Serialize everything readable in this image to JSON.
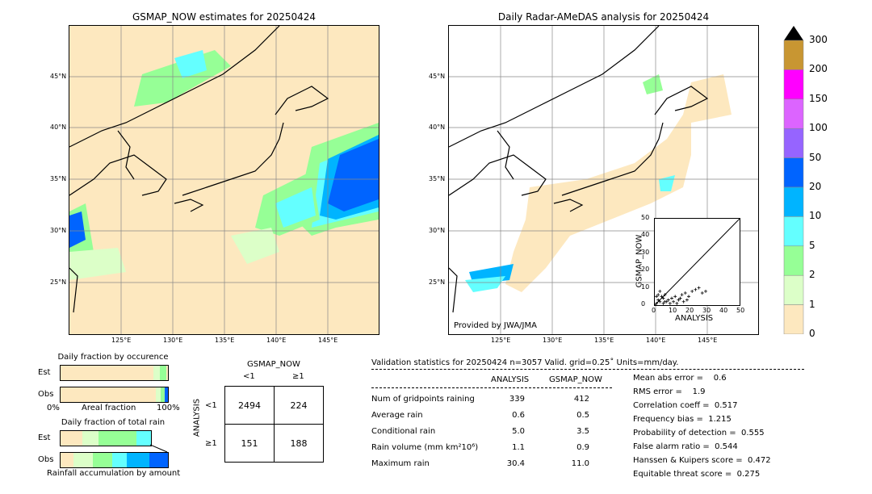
{
  "left_map": {
    "title": "GSMAP_NOW estimates for 20250424",
    "lat_labels": [
      "45°N",
      "40°N",
      "35°N",
      "30°N",
      "25°N"
    ],
    "lon_labels": [
      "125°E",
      "130°E",
      "135°E",
      "140°E",
      "145°E"
    ]
  },
  "right_map": {
    "title": "Daily Radar-AMeDAS analysis for 20250424",
    "lat_labels": [
      "45°N",
      "40°N",
      "35°N",
      "30°N",
      "25°N"
    ],
    "lon_labels": [
      "125°E",
      "130°E",
      "135°E",
      "140°E",
      "145°E"
    ],
    "provider": "Provided by JWA/JMA"
  },
  "colorbar": {
    "levels": [
      "300",
      "200",
      "150",
      "100",
      "50",
      "20",
      "10",
      "5",
      "2",
      "1",
      "0"
    ],
    "colors": [
      "#c89632",
      "#ff00ff",
      "#dc64ff",
      "#9664ff",
      "#0064ff",
      "#00b4ff",
      "#64ffff",
      "#96ff96",
      "#dcffc8",
      "#fde8bf"
    ]
  },
  "chart_data": [
    {
      "type": "scatter",
      "xlabel": "ANALYSIS",
      "ylabel": "GSMAP_NOW",
      "xlim": [
        0,
        50
      ],
      "ylim": [
        0,
        50
      ],
      "xticks": [
        "0",
        "10",
        "20",
        "30",
        "40",
        "50"
      ],
      "yticks": [
        "0",
        "10",
        "20",
        "30",
        "40",
        "50"
      ],
      "points": [
        [
          1,
          1
        ],
        [
          2,
          3
        ],
        [
          3,
          2
        ],
        [
          4,
          5
        ],
        [
          5,
          4
        ],
        [
          6,
          2
        ],
        [
          2,
          6
        ],
        [
          8,
          3
        ],
        [
          10,
          4
        ],
        [
          12,
          5
        ],
        [
          14,
          3
        ],
        [
          16,
          6
        ],
        [
          18,
          7
        ],
        [
          20,
          5
        ],
        [
          22,
          8
        ],
        [
          24,
          9
        ],
        [
          26,
          10
        ],
        [
          28,
          7
        ],
        [
          30,
          8
        ],
        [
          5,
          1
        ],
        [
          7,
          2
        ],
        [
          9,
          1
        ],
        [
          11,
          2
        ],
        [
          13,
          1
        ],
        [
          3,
          8
        ],
        [
          1,
          5
        ],
        [
          6,
          6
        ],
        [
          15,
          4
        ],
        [
          17,
          2
        ],
        [
          19,
          3
        ]
      ]
    },
    {
      "type": "bar",
      "title": "Daily fraction by occurence",
      "categories": [
        "Est",
        "Obs"
      ],
      "xlabel": "Areal fraction",
      "x_left": "0%",
      "x_right": "100%"
    },
    {
      "type": "bar",
      "title": "Daily fraction of total rain",
      "categories": [
        "Est",
        "Obs"
      ],
      "xlabel": "Rainfall accumulation by amount"
    }
  ],
  "contingency": {
    "col_header": "GSMAP_NOW",
    "col_labels": [
      "<1",
      "≥1"
    ],
    "row_header": "ANALYSIS",
    "row_labels": [
      "<1",
      "≥1"
    ],
    "cells": [
      [
        "2494",
        "224"
      ],
      [
        "151",
        "188"
      ]
    ]
  },
  "validation": {
    "header": "Validation statistics for 20250424  n=3057 Valid. grid=0.25˚ Units=mm/day.",
    "col_analysis": "ANALYSIS",
    "col_gsmap": "GSMAP_NOW",
    "rows": [
      {
        "label": "Num of gridpoints raining",
        "a": "339",
        "g": "412"
      },
      {
        "label": "Average rain",
        "a": "0.6",
        "g": "0.5"
      },
      {
        "label": "Conditional rain",
        "a": "5.0",
        "g": "3.5"
      },
      {
        "label": "Rain volume (mm km²10⁶)",
        "a": "1.1",
        "g": "0.9"
      },
      {
        "label": "Maximum rain",
        "a": "30.4",
        "g": "11.0"
      }
    ],
    "scores": [
      "Mean abs error =    0.6",
      "RMS error =    1.9",
      "Correlation coeff =  0.517",
      "Frequency bias =  1.215",
      "Probability of detection =  0.555",
      "False alarm ratio =  0.544",
      "Hanssen & Kuipers score =  0.472",
      "Equitable threat score =  0.275"
    ]
  }
}
